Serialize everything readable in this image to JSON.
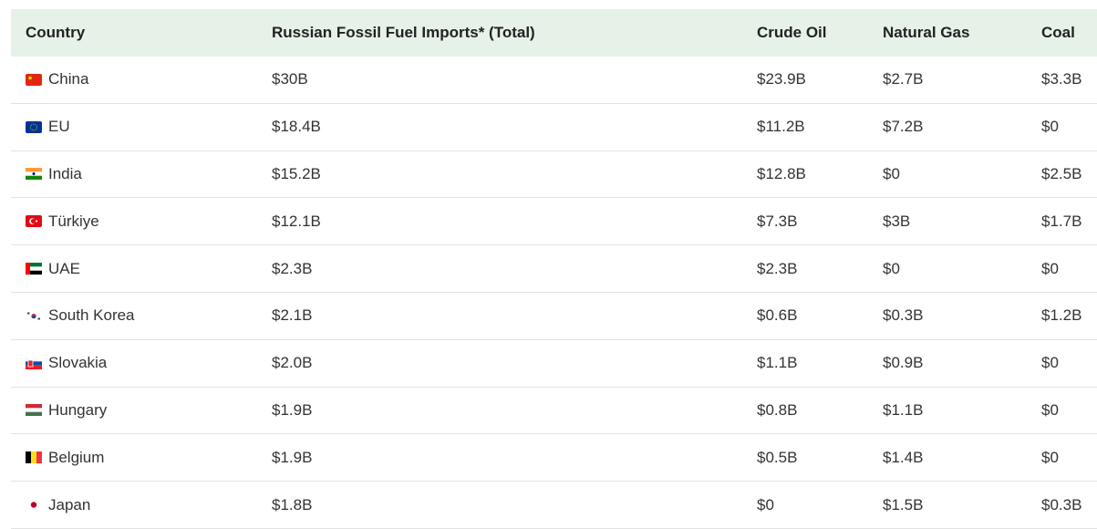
{
  "table": {
    "header": [
      "Country",
      "Russian Fossil Fuel Imports* (Total)",
      "Crude Oil",
      "Natural Gas",
      "Coal"
    ],
    "rows": [
      [
        "China",
        "$30B",
        "$23.9B",
        "$2.7B",
        "$3.3B"
      ],
      [
        "EU",
        "$18.4B",
        "$11.2B",
        "$7.2B",
        "$0"
      ],
      [
        "India",
        "$15.2B",
        "$12.8B",
        "$0",
        "$2.5B"
      ],
      [
        "Türkiye",
        "$12.1B",
        "$7.3B",
        "$3B",
        "$1.7B"
      ],
      [
        "UAE",
        "$2.3B",
        "$2.3B",
        "$0",
        "$0"
      ],
      [
        "South Korea",
        "$2.1B",
        "$0.6B",
        "$0.3B",
        "$1.2B"
      ],
      [
        "Slovakia",
        "$2.0B",
        "$1.1B",
        "$0.9B",
        "$0"
      ],
      [
        "Hungary",
        "$1.9B",
        "$0.8B",
        "$1.1B",
        "$0"
      ],
      [
        "Belgium",
        "$1.9B",
        "$0.5B",
        "$1.4B",
        "$0"
      ],
      [
        "Japan",
        "$1.8B",
        "$0",
        "$1.5B",
        "$0.3B"
      ]
    ]
  }
}
